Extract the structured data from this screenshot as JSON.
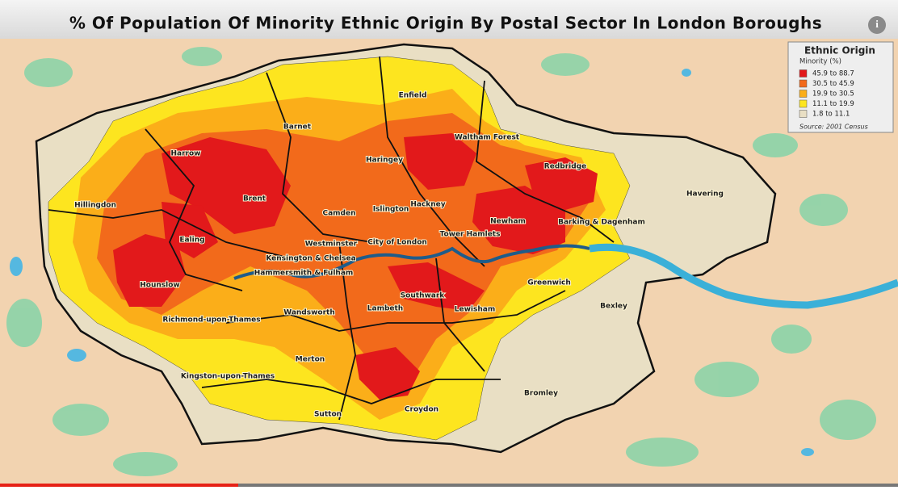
{
  "header": {
    "title": "% Of Population Of Minority Ethnic Origin By Postal Sector In London Boroughs"
  },
  "legend": {
    "title": "Ethnic Origin",
    "subtitle": "Minority (%)",
    "items": [
      {
        "label": "45.9 to 88.7",
        "color": "#e2191b"
      },
      {
        "label": "30.5 to 45.9",
        "color": "#f26a1b"
      },
      {
        "label": "19.9 to 30.5",
        "color": "#fbae19"
      },
      {
        "label": "11.1 to 19.9",
        "color": "#fde51f"
      },
      {
        "label": "1.8 to 11.1",
        "color": "#e9dfc4"
      }
    ],
    "source": "Source: 2001 Census"
  },
  "boroughs": [
    "Enfield",
    "Barnet",
    "Waltham Forest",
    "Harrow",
    "Haringey",
    "Redbridge",
    "Havering",
    "Brent",
    "Hillingdon",
    "Camden",
    "Islington",
    "Hackney",
    "Newham",
    "Barking & Dagenham",
    "Ealing",
    "Westminster",
    "City of London",
    "Tower Hamlets",
    "Kensington & Chelsea",
    "Hammersmith & Fulham",
    "Hounslow",
    "Southwark",
    "Greenwich",
    "Wandsworth",
    "Lambeth",
    "Lewisham",
    "Bexley",
    "Richmond-upon-Thames",
    "Merton",
    "Kingston-upon-Thames",
    "Bromley",
    "Sutton",
    "Croydon"
  ]
}
